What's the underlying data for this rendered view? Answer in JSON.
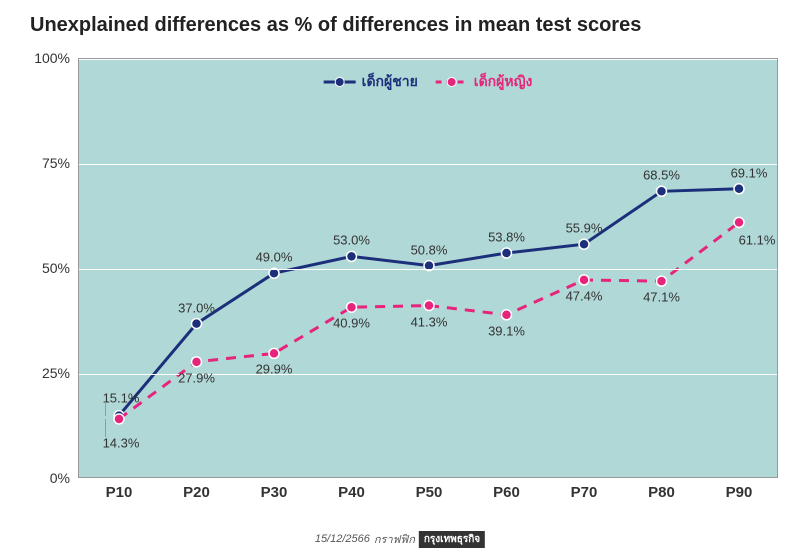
{
  "title": "Unexplained differences as % of differences in mean test scores",
  "title_fontsize": 20,
  "chart": {
    "type": "line",
    "background_color": "#b0d8d6",
    "grid_color": "#ffffff",
    "ylim": [
      0,
      100
    ],
    "ytick_step": 25,
    "y_labels": [
      "0%",
      "25%",
      "50%",
      "75%",
      "100%"
    ],
    "x_categories": [
      "P10",
      "P20",
      "P30",
      "P40",
      "P50",
      "P60",
      "P70",
      "P80",
      "P90"
    ],
    "series": [
      {
        "name": "เด็กผู้ชาย",
        "color": "#1c2f7a",
        "line_style": "solid",
        "line_width": 3,
        "marker": "circle",
        "marker_size": 10,
        "values": [
          15.1,
          37.0,
          49.0,
          53.0,
          50.8,
          53.8,
          55.9,
          68.5,
          69.1
        ],
        "labels": [
          "15.1%",
          "37.0%",
          "49.0%",
          "53.0%",
          "50.8%",
          "53.8%",
          "55.9%",
          "68.5%",
          "69.1%"
        ],
        "label_pos": [
          "above",
          "above",
          "above",
          "above",
          "above",
          "above",
          "above",
          "above",
          "above"
        ]
      },
      {
        "name": "เด็กผู้หญิง",
        "color": "#e6247b",
        "line_style": "dashed",
        "line_width": 3,
        "marker": "circle",
        "marker_size": 10,
        "values": [
          14.3,
          27.9,
          29.9,
          40.9,
          41.3,
          39.1,
          47.4,
          47.1,
          61.1
        ],
        "labels": [
          "14.3%",
          "27.9%",
          "29.9%",
          "40.9%",
          "41.3%",
          "39.1%",
          "47.4%",
          "47.1%",
          "61.1%"
        ],
        "label_pos": [
          "below",
          "below",
          "below",
          "below",
          "below",
          "below",
          "below",
          "below",
          "below"
        ]
      }
    ]
  },
  "footer": {
    "date": "15/12/2566",
    "source_prefix": "กราฟฟิก",
    "source_badge": "กรุงเทพธุรกิจ"
  }
}
